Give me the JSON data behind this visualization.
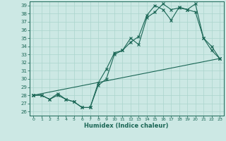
{
  "title": "",
  "xlabel": "Humidex (Indice chaleur)",
  "ylabel": "",
  "bg_color": "#cce8e4",
  "grid_color": "#aad4cc",
  "line_color": "#1a6655",
  "xlim": [
    -0.5,
    23.5
  ],
  "ylim": [
    25.5,
    39.5
  ],
  "xticks": [
    0,
    1,
    2,
    3,
    4,
    5,
    6,
    7,
    8,
    9,
    10,
    11,
    12,
    13,
    14,
    15,
    16,
    17,
    18,
    19,
    20,
    21,
    22,
    23
  ],
  "yticks": [
    26,
    27,
    28,
    29,
    30,
    31,
    32,
    33,
    34,
    35,
    36,
    37,
    38,
    39
  ],
  "series1_x": [
    0,
    1,
    2,
    3,
    4,
    5,
    6,
    7,
    8,
    9,
    10,
    11,
    12,
    13,
    14,
    15,
    16,
    17,
    18,
    19,
    20,
    21,
    22,
    23
  ],
  "series1_y": [
    28.0,
    28.0,
    27.5,
    28.0,
    27.5,
    27.2,
    26.5,
    26.5,
    29.5,
    31.2,
    33.2,
    33.5,
    35.0,
    34.2,
    37.5,
    38.2,
    39.2,
    38.5,
    38.7,
    38.5,
    39.2,
    35.0,
    33.5,
    32.5
  ],
  "series2_x": [
    0,
    1,
    2,
    3,
    4,
    5,
    6,
    7,
    8,
    9,
    10,
    11,
    12,
    13,
    14,
    15,
    16,
    17,
    18,
    19,
    20,
    21,
    22,
    23
  ],
  "series2_y": [
    28.0,
    28.0,
    27.5,
    28.2,
    27.5,
    27.2,
    26.5,
    26.5,
    29.2,
    30.0,
    33.0,
    33.5,
    34.5,
    35.2,
    37.8,
    39.0,
    38.5,
    37.2,
    38.8,
    38.5,
    38.2,
    35.0,
    34.0,
    32.5
  ],
  "series3_x": [
    0,
    23
  ],
  "series3_y": [
    28.0,
    32.5
  ]
}
